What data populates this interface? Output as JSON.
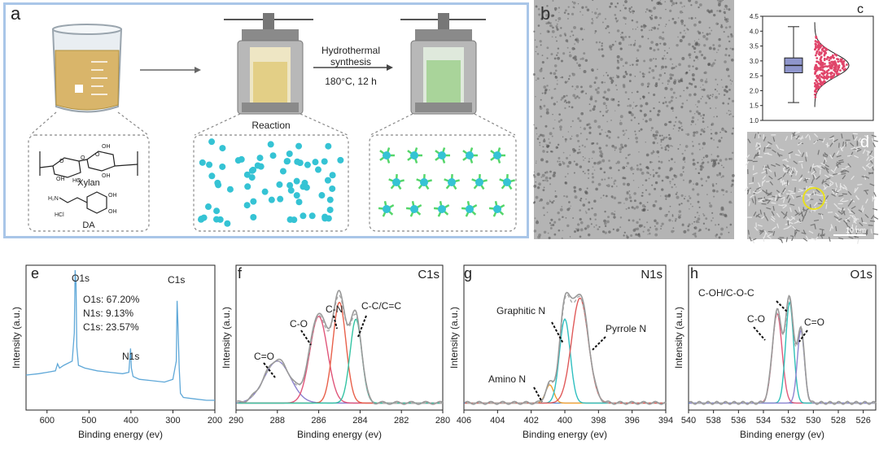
{
  "panel_a": {
    "label": "a",
    "arrow_text_line1": "Hydrothermal",
    "arrow_text_line2": "synthesis",
    "conditions": "180°C,  12 h",
    "reaction_label": "Reaction",
    "xylan_label": "Xylan",
    "da_label": "DA",
    "hcl_label": "HCl",
    "colors": {
      "dot": "#35c3d4",
      "ligand": "#55d66a",
      "frame": "#a9c6e8"
    }
  },
  "panel_b": {
    "label": "b"
  },
  "panel_d": {
    "label": "d",
    "scalebar": "10 nm"
  },
  "chart_data": [
    {
      "panel": "c",
      "type": "box",
      "ylim": [
        1.0,
        4.5
      ],
      "yticks": [
        "1.0",
        "1.5",
        "2.0",
        "2.5",
        "3.0",
        "3.5",
        "4.0",
        "4.5"
      ],
      "box": {
        "min": 1.6,
        "q1": 2.6,
        "median": 2.85,
        "q3": 3.1,
        "max": 4.15
      },
      "box_color": "#8f96cc",
      "points_color": "#e0456a"
    },
    {
      "panel": "e",
      "type": "line",
      "xlabel": "Binding energy (ev)",
      "ylabel": "Intensity (a.u.)",
      "xlim": [
        650,
        200
      ],
      "xticks": [
        "600",
        "500",
        "400",
        "300",
        "200"
      ],
      "peak_labels": [
        "O1s",
        "N1s",
        "C1s"
      ],
      "composition": [
        "O1s: 67.20%",
        "N1s: 9.13%",
        "C1s: 23.57%"
      ],
      "series": [
        {
          "color": "#5fa8d8",
          "x": [
            650,
            620,
            600,
            580,
            575,
            570,
            560,
            540,
            535,
            533,
            531,
            529,
            525,
            510,
            480,
            450,
            420,
            405,
            401,
            399,
            395,
            380,
            350,
            320,
            300,
            292,
            290,
            288,
            285,
            282,
            275,
            250,
            220,
            200
          ],
          "y": [
            0.25,
            0.26,
            0.27,
            0.28,
            0.33,
            0.3,
            0.32,
            0.35,
            0.55,
            1.0,
            0.9,
            0.45,
            0.32,
            0.3,
            0.28,
            0.27,
            0.26,
            0.27,
            0.44,
            0.3,
            0.24,
            0.22,
            0.21,
            0.2,
            0.22,
            0.35,
            0.78,
            0.62,
            0.3,
            0.12,
            0.09,
            0.08,
            0.07,
            0.07
          ]
        }
      ]
    },
    {
      "panel": "f",
      "type": "line",
      "title": "C1s",
      "xlabel": "Binding energy (ev)",
      "ylabel": "Intensity (a.u.)",
      "xlim": [
        290,
        280
      ],
      "xticks": [
        "290",
        "288",
        "286",
        "284",
        "282",
        "280"
      ],
      "annotations": [
        "C=O",
        "C-O",
        "C-N",
        "C-C/C=C"
      ],
      "components": [
        {
          "name": "C=O",
          "center": 288.0,
          "height": 0.3,
          "width": 0.9,
          "color": "#8a7fcf"
        },
        {
          "name": "C-O",
          "center": 286.0,
          "height": 0.62,
          "width": 0.6,
          "color": "#e0567a"
        },
        {
          "name": "C-N",
          "center": 285.0,
          "height": 0.72,
          "width": 0.45,
          "color": "#e8604a"
        },
        {
          "name": "C-C/C=C",
          "center": 284.2,
          "height": 0.6,
          "width": 0.4,
          "color": "#33c4a4"
        }
      ],
      "envelope_color": "#9a9a9a"
    },
    {
      "panel": "g",
      "type": "line",
      "title": "N1s",
      "xlabel": "Binding energy (ev)",
      "ylabel": "Intensity (a.u.)",
      "xlim": [
        406,
        394
      ],
      "xticks": [
        "406",
        "404",
        "402",
        "400",
        "398",
        "396",
        "394"
      ],
      "annotations": [
        "Graphitic N",
        "Pyrrole N",
        "Amino N"
      ],
      "components": [
        {
          "name": "Amino N",
          "center": 400.9,
          "height": 0.13,
          "width": 0.35,
          "color": "#f0a030"
        },
        {
          "name": "Graphitic N",
          "center": 400.0,
          "height": 0.6,
          "width": 0.45,
          "color": "#2fbfc0"
        },
        {
          "name": "Pyrrole N",
          "center": 399.1,
          "height": 0.75,
          "width": 0.7,
          "color": "#e05a5a"
        }
      ],
      "envelope_color": "#9a9a9a"
    },
    {
      "panel": "h",
      "type": "line",
      "title": "O1s",
      "xlabel": "Binding energy (ev)",
      "ylabel": "Intensity (a.u.)",
      "xlim": [
        540,
        525
      ],
      "xticks": [
        "540",
        "538",
        "536",
        "534",
        "532",
        "530",
        "528",
        "526"
      ],
      "annotations": [
        "C-OH/C-O-C",
        "C-O",
        "C=O"
      ],
      "components": [
        {
          "name": "C-O",
          "center": 532.9,
          "height": 0.64,
          "width": 0.55,
          "color": "#e05a7a"
        },
        {
          "name": "C-OH/C-O-C",
          "center": 531.9,
          "height": 0.72,
          "width": 0.45,
          "color": "#2fc0b8"
        },
        {
          "name": "C=O",
          "center": 531.0,
          "height": 0.52,
          "width": 0.4,
          "color": "#8f86d0"
        }
      ],
      "envelope_color": "#9a9a9a"
    }
  ]
}
